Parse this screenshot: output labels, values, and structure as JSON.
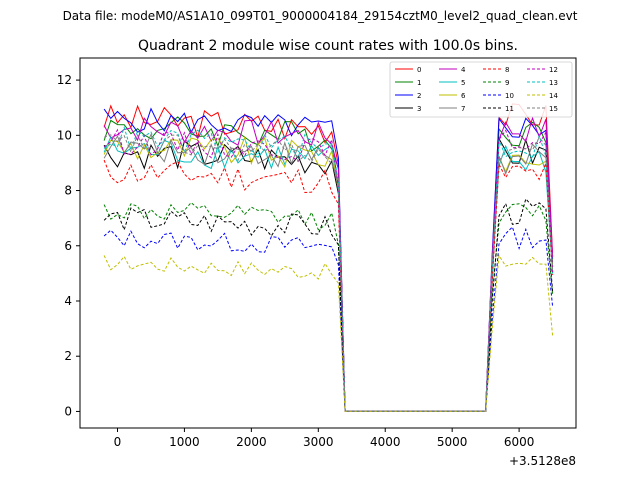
{
  "suptitle": "Data file: modeM0/AS1A10_099T01_9000004184_29154cztM0_level2_quad_clean.evt",
  "chart_data": {
    "type": "line",
    "title": "Quadrant 2 module wise count rates with 100.0s bins.",
    "xlabel": "",
    "ylabel": "",
    "x_offset_label": "+3.5128e8",
    "xlim": [
      -560,
      6850
    ],
    "ylim": [
      -0.6,
      12.8
    ],
    "xticks": [
      0,
      1000,
      2000,
      3000,
      4000,
      5000,
      6000
    ],
    "yticks": [
      0,
      2,
      4,
      6,
      8,
      10,
      12
    ],
    "legend_position": "top-right",
    "legend_columns": 4,
    "bin_seconds": 100,
    "x_start": -200,
    "gap": {
      "start": 3400,
      "end": 5500
    },
    "series": [
      {
        "name": "0",
        "color": "#ff0000",
        "style": "solid",
        "pre_level": 10.6,
        "pre_amp": 0.55,
        "post_level": 10.7,
        "post_amp": 0.5
      },
      {
        "name": "1",
        "color": "#008000",
        "style": "solid",
        "pre_level": 10.3,
        "pre_amp": 0.55,
        "post_level": 10.1,
        "post_amp": 0.5
      },
      {
        "name": "2",
        "color": "#0000ff",
        "style": "solid",
        "pre_level": 10.6,
        "pre_amp": 0.45,
        "post_level": 10.3,
        "post_amp": 0.5
      },
      {
        "name": "3",
        "color": "#000000",
        "style": "solid",
        "pre_level": 9.4,
        "pre_amp": 0.55,
        "post_level": 9.3,
        "post_amp": 0.6
      },
      {
        "name": "4",
        "color": "#bf00bf",
        "style": "solid",
        "pre_level": 10.3,
        "pre_amp": 0.5,
        "post_level": 10.2,
        "post_amp": 0.5
      },
      {
        "name": "5",
        "color": "#00bfbf",
        "style": "solid",
        "pre_level": 9.5,
        "pre_amp": 0.55,
        "post_level": 9.1,
        "post_amp": 0.6
      },
      {
        "name": "6",
        "color": "#bfbf00",
        "style": "solid",
        "pre_level": 9.6,
        "pre_amp": 0.55,
        "post_level": 9.2,
        "post_amp": 0.6
      },
      {
        "name": "7",
        "color": "#808080",
        "style": "solid",
        "pre_level": 9.6,
        "pre_amp": 0.5,
        "post_level": 9.0,
        "post_amp": 0.7
      },
      {
        "name": "8",
        "color": "#ff0000",
        "style": "dashed",
        "pre_level": 8.7,
        "pre_amp": 0.5,
        "post_level": 8.6,
        "post_amp": 0.5
      },
      {
        "name": "9",
        "color": "#008000",
        "style": "dashed",
        "pre_level": 7.3,
        "pre_amp": 0.4,
        "post_level": 7.2,
        "post_amp": 0.4
      },
      {
        "name": "10",
        "color": "#0000ff",
        "style": "dashed",
        "pre_level": 6.3,
        "pre_amp": 0.35,
        "post_level": 6.3,
        "post_amp": 0.4
      },
      {
        "name": "11",
        "color": "#000000",
        "style": "dashed",
        "pre_level": 7.0,
        "pre_amp": 0.45,
        "post_level": 7.2,
        "post_amp": 0.5
      },
      {
        "name": "12",
        "color": "#bf00bf",
        "style": "dashed",
        "pre_level": 9.8,
        "pre_amp": 0.45,
        "post_level": 9.8,
        "post_amp": 0.4
      },
      {
        "name": "13",
        "color": "#00bfbf",
        "style": "dashed",
        "pre_level": 9.9,
        "pre_amp": 0.45,
        "post_level": 9.6,
        "post_amp": 0.5
      },
      {
        "name": "14",
        "color": "#bfbf00",
        "style": "dashed",
        "pre_level": 5.4,
        "pre_amp": 0.3,
        "post_level": 5.4,
        "post_amp": 0.3
      },
      {
        "name": "15",
        "color": "#808080",
        "style": "dashed",
        "pre_level": 9.7,
        "pre_amp": 0.45,
        "post_level": 9.5,
        "post_amp": 0.5
      }
    ]
  }
}
